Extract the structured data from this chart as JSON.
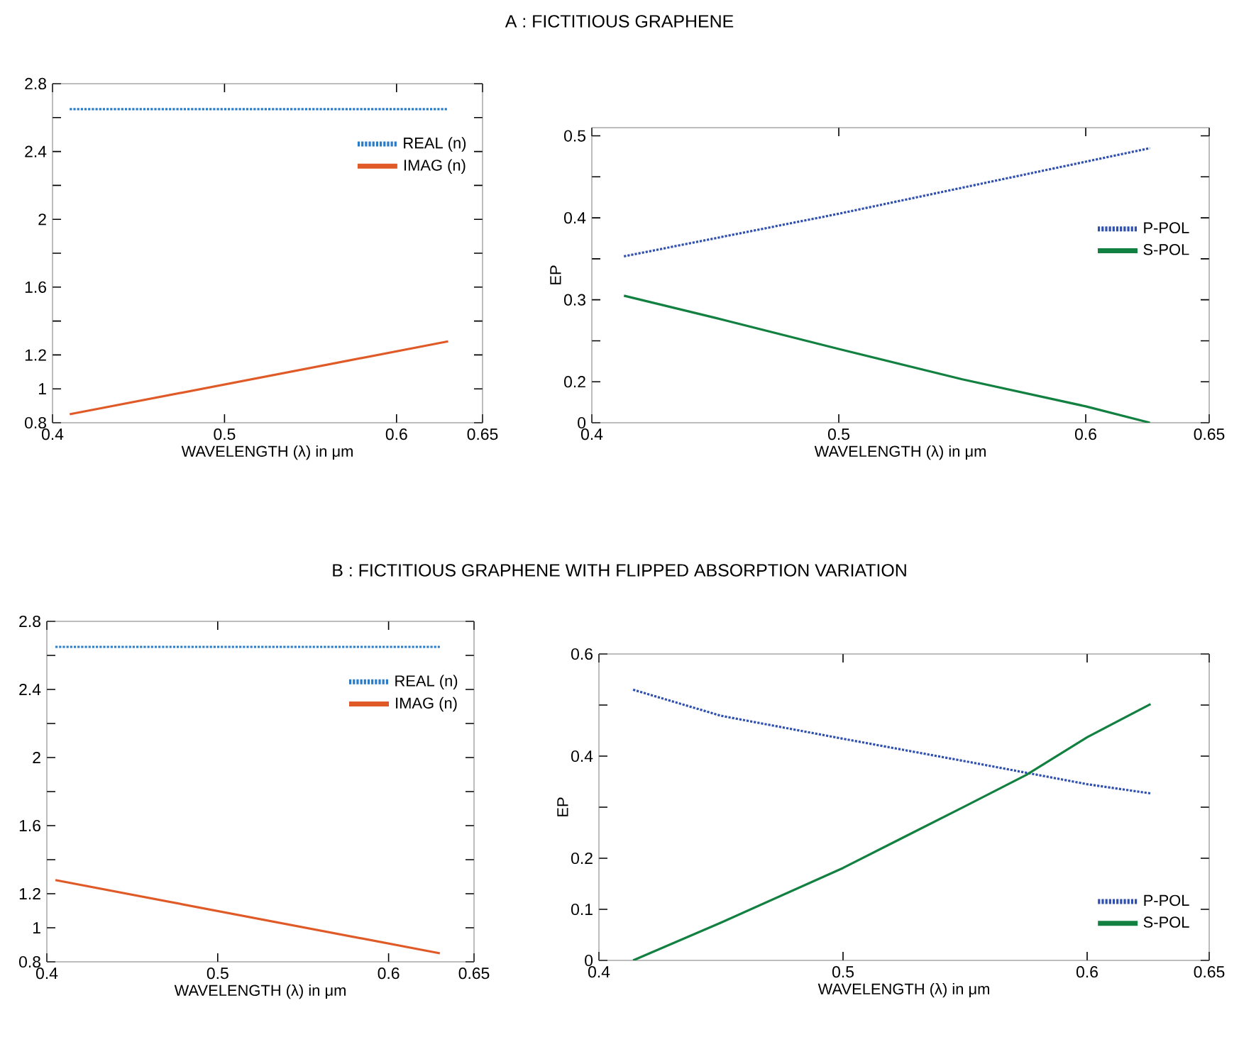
{
  "chart_data": [
    {
      "type": "line",
      "title": "A : FICTITIOUS GRAPHENE",
      "xlabel": "WAVELENGTH (λ) in μm",
      "xlim": [
        0.4,
        0.65
      ],
      "xticks": [
        0.4,
        0.5,
        0.6,
        0.65
      ],
      "ylim": [
        0.8,
        2.8
      ],
      "yticks": [
        0.8,
        1,
        1.2,
        {
          "value": 1.4,
          "label": null
        },
        1.6,
        {
          "value": 1.8,
          "label": null
        },
        2,
        {
          "value": 2.2,
          "label": null
        },
        2.4,
        {
          "value": 2.6,
          "label": null
        },
        2.8
      ],
      "legend": "top right",
      "grid": false,
      "series": [
        {
          "name": "REAL (n)",
          "color": "#2a7cc8",
          "line_style": "dotted",
          "x": [
            0.41,
            0.63
          ],
          "values": [
            2.65,
            2.65
          ]
        },
        {
          "name": "IMAG (n)",
          "color": "#e05a28",
          "line_style": "solid",
          "x": [
            0.41,
            0.63
          ],
          "values": [
            0.85,
            1.28
          ]
        }
      ]
    },
    {
      "type": "line",
      "xlabel": "WAVELENGTH (λ) in μm",
      "ylabel": "EP",
      "xlim": [
        0.4,
        0.65
      ],
      "xticks": [
        0.4,
        0.5,
        0.6,
        0.65
      ],
      "ylim": [
        0.15,
        0.51
      ],
      "yticks": [
        {
          "value": 0.15,
          "label": "0"
        },
        0.2,
        {
          "value": 0.25,
          "label": null
        },
        0.3,
        {
          "value": 0.35,
          "label": null
        },
        0.4,
        {
          "value": 0.45,
          "label": null
        },
        0.5
      ],
      "legend": "right",
      "grid": false,
      "series": [
        {
          "name": "P-POL",
          "color": "#3050b0",
          "line_style": "dotted",
          "x": [
            0.413,
            0.5,
            0.626
          ],
          "values": [
            0.353,
            0.405,
            0.485
          ]
        },
        {
          "name": "S-POL",
          "color": "#128040",
          "line_style": "solid",
          "x": [
            0.413,
            0.45,
            0.5,
            0.55,
            0.6,
            0.626
          ],
          "values": [
            0.305,
            0.278,
            0.24,
            0.203,
            0.17,
            0.15
          ]
        }
      ]
    },
    {
      "type": "line",
      "title": "B : FICTITIOUS GRAPHENE WITH FLIPPED ABSORPTION VARIATION",
      "xlabel": "WAVELENGTH (λ) in μm",
      "xlim": [
        0.4,
        0.65
      ],
      "xticks": [
        0.4,
        0.5,
        0.6,
        0.65
      ],
      "ylim": [
        0.8,
        2.8
      ],
      "yticks": [
        0.8,
        1,
        1.2,
        {
          "value": 1.4,
          "label": null
        },
        1.6,
        {
          "value": 1.8,
          "label": null
        },
        2,
        {
          "value": 2.2,
          "label": null
        },
        2.4,
        {
          "value": 2.6,
          "label": null
        },
        2.8
      ],
      "legend": "top right",
      "grid": false,
      "series": [
        {
          "name": "REAL (n)",
          "color": "#2a7cc8",
          "line_style": "dotted",
          "x": [
            0.405,
            0.63
          ],
          "values": [
            2.65,
            2.65
          ]
        },
        {
          "name": "IMAG (n)",
          "color": "#e05a28",
          "line_style": "solid",
          "x": [
            0.405,
            0.63
          ],
          "values": [
            1.28,
            0.85
          ]
        }
      ]
    },
    {
      "type": "line",
      "xlabel": "WAVELENGTH (λ) in μm",
      "ylabel": "EP",
      "xlim": [
        0.4,
        0.65
      ],
      "xticks": [
        0.4,
        0.5,
        0.6,
        0.65
      ],
      "ylim": [
        0,
        0.6
      ],
      "yticks": [
        0,
        0.1,
        0.2,
        {
          "value": 0.3,
          "label": null
        },
        0.4,
        {
          "value": 0.5,
          "label": null
        },
        0.6
      ],
      "legend": "bottom right",
      "grid": false,
      "series": [
        {
          "name": "P-POL",
          "color": "#3050b0",
          "line_style": "dotted",
          "x": [
            0.414,
            0.45,
            0.5,
            0.55,
            0.6,
            0.626
          ],
          "values": [
            0.53,
            0.479,
            0.434,
            0.39,
            0.345,
            0.327
          ]
        },
        {
          "name": "S-POL",
          "color": "#128040",
          "line_style": "solid",
          "x": [
            0.414,
            0.45,
            0.5,
            0.55,
            0.575,
            0.6,
            0.626
          ],
          "values": [
            0,
            0.074,
            0.181,
            0.302,
            0.363,
            0.437,
            0.502
          ]
        }
      ]
    }
  ]
}
